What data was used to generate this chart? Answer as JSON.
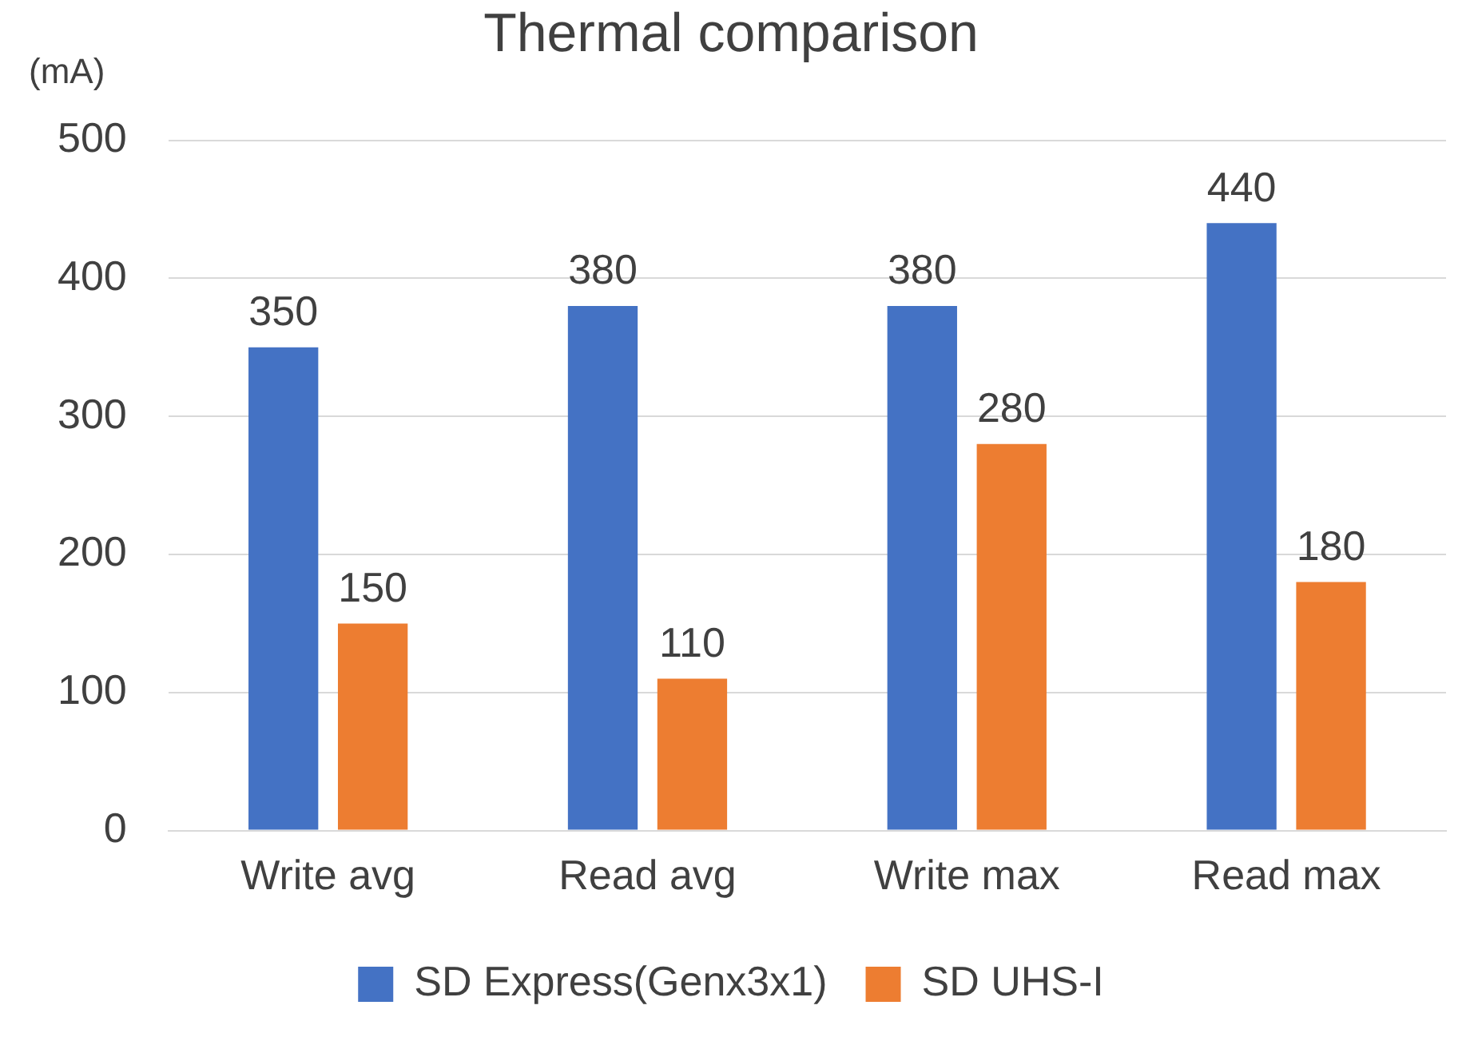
{
  "chart_data": {
    "type": "bar",
    "title": "Thermal comparison",
    "ylabel": "(mA)",
    "categories": [
      "Write avg",
      "Read avg",
      "Write max",
      "Read max"
    ],
    "series": [
      {
        "name": "SD Express(Genx3x1)",
        "color": "#4472c4",
        "values": [
          350,
          380,
          380,
          440
        ]
      },
      {
        "name": "SD UHS-I",
        "color": "#ed7d31",
        "values": [
          150,
          110,
          280,
          180
        ]
      }
    ],
    "ylim": [
      0,
      500
    ],
    "yticks": [
      0,
      100,
      200,
      300,
      400,
      500
    ],
    "grid": "y",
    "legend": "bottom",
    "data_labels": true
  }
}
